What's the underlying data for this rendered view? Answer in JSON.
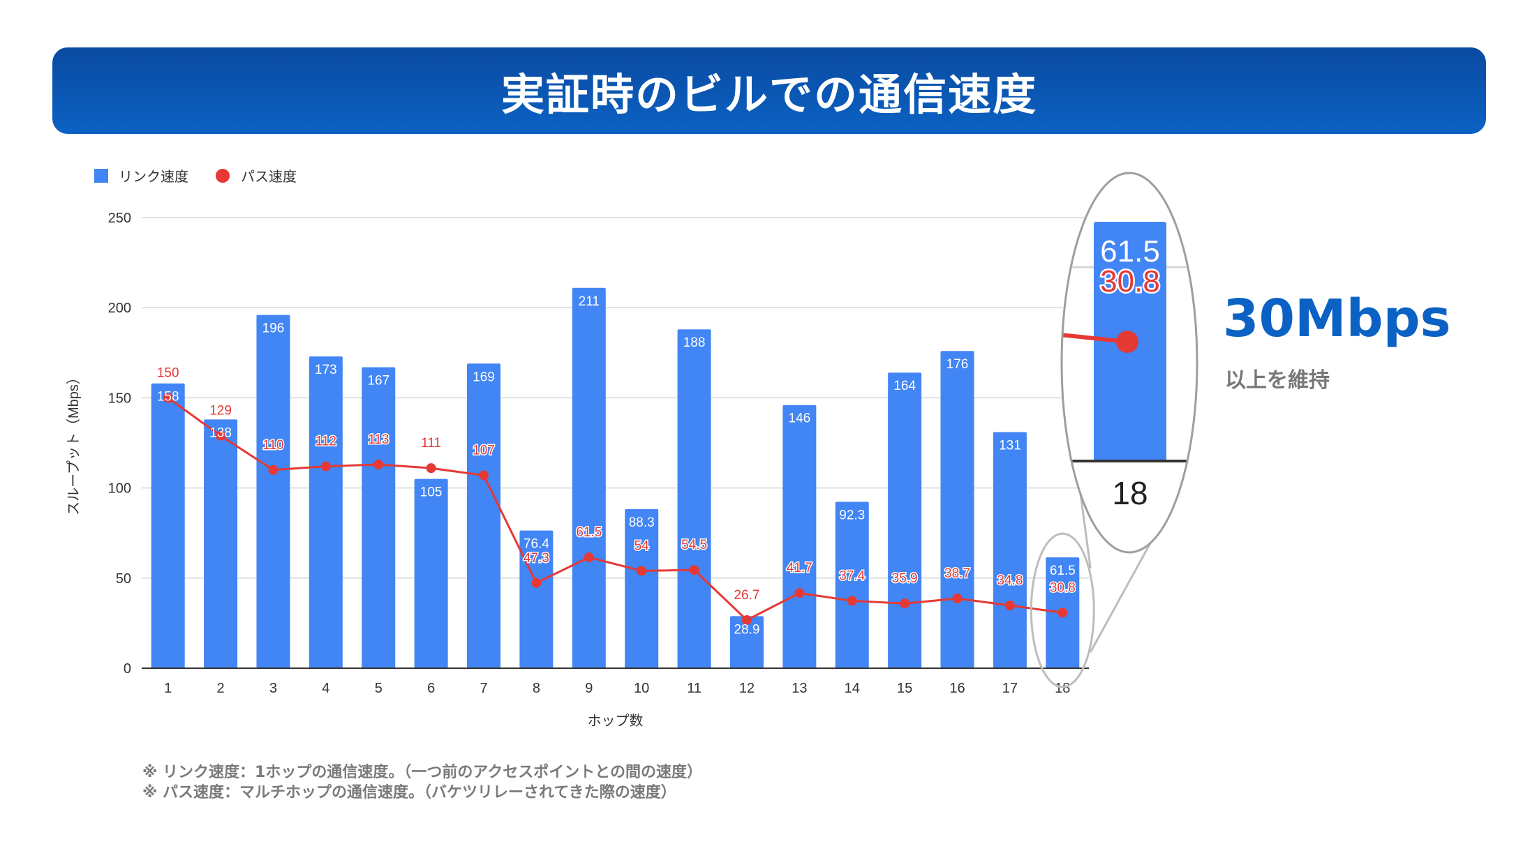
{
  "banner": {
    "title": "実証時のビルでの通信速度"
  },
  "callout": {
    "value": "30Mbps",
    "subtitle": "以上を維持"
  },
  "notes": [
    "※ リンク速度：1ホップの通信速度。（一つ前のアクセスポイントとの間の速度）",
    "※ パス速度：マルチホップの通信速度。（バケツリレーされてきた際の速度）"
  ],
  "colors": {
    "bar": "#4285f4",
    "line": "#e53935",
    "banner": "#0b62c4"
  },
  "chart_data": {
    "type": "bar",
    "title": "",
    "xlabel": "ホップ数",
    "ylabel": "スループット（Mbps）",
    "ylim": [
      0,
      250
    ],
    "yticks": [
      0,
      50,
      100,
      150,
      200,
      250
    ],
    "categories": [
      "1",
      "2",
      "3",
      "4",
      "5",
      "6",
      "7",
      "8",
      "9",
      "10",
      "11",
      "12",
      "13",
      "14",
      "15",
      "16",
      "17",
      "18"
    ],
    "series": [
      {
        "name": "リンク速度",
        "kind": "bar",
        "values": [
          158,
          138,
          196,
          173,
          167,
          105,
          169,
          76.4,
          211,
          88.3,
          188,
          28.9,
          146,
          92.3,
          164,
          176,
          131,
          61.5
        ],
        "labels": [
          "158",
          "138",
          "196",
          "173",
          "167",
          "105",
          "169",
          "76.4",
          "211",
          "88.3",
          "188",
          "28.9",
          "146",
          "92.3",
          "164",
          "176",
          "131",
          "61.5"
        ]
      },
      {
        "name": "パス速度",
        "kind": "line",
        "values": [
          150,
          129,
          110,
          112,
          113,
          111,
          107,
          47.3,
          61.5,
          54,
          54.5,
          26.7,
          41.7,
          37.4,
          35.9,
          38.7,
          34.8,
          30.8
        ],
        "labels": [
          "150",
          "129",
          "110",
          "112",
          "113",
          "111",
          "107",
          "47.3",
          "61.5",
          "54",
          "54.5",
          "26.7",
          "41.7",
          "37.4",
          "35.9",
          "38.7",
          "34.8",
          "30.8"
        ]
      }
    ],
    "legend_position": "top-left",
    "grid": true,
    "zoom": {
      "category": "18",
      "bar_label": "61.5",
      "line_label": "30.8"
    }
  }
}
